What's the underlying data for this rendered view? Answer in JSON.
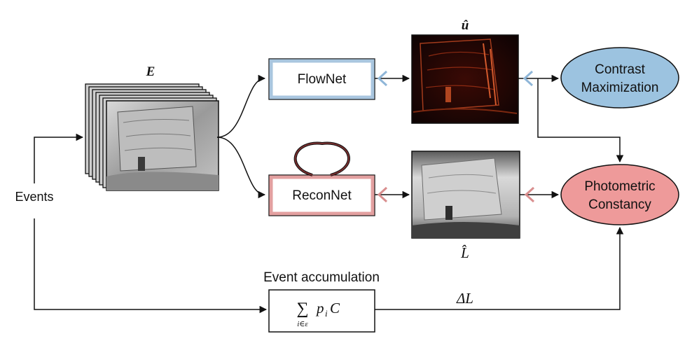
{
  "events_label": "Events",
  "stack_label": "E",
  "flownet_label": "FlowNet",
  "reconnet_label": "ReconNet",
  "contrast": {
    "line1": "Contrast",
    "line2": "Maximization"
  },
  "photometric": {
    "line1": "Photometric",
    "line2": "Constancy"
  },
  "flow_label": "û",
  "recon_label": "L̂",
  "accum_title": "Event accumulation",
  "accum_formula": {
    "sum": "∑",
    "sub": "i∈ε",
    "term": "p",
    "term_sub": "i",
    "term_c": "C"
  },
  "delta_label": "ΔL",
  "colors": {
    "flow_box_border": "#a9c6df",
    "recon_box_border": "#e3a0a0",
    "contrast_fill": "#9cc3e0",
    "photometric_fill": "#ee9a9a",
    "arrow_blue": "#8fb6d8",
    "arrow_red": "#d98e8e",
    "loop": "#7a2f2f",
    "flow_image_bg": "#140505",
    "recon_image_bg": "#9a9a9a"
  }
}
